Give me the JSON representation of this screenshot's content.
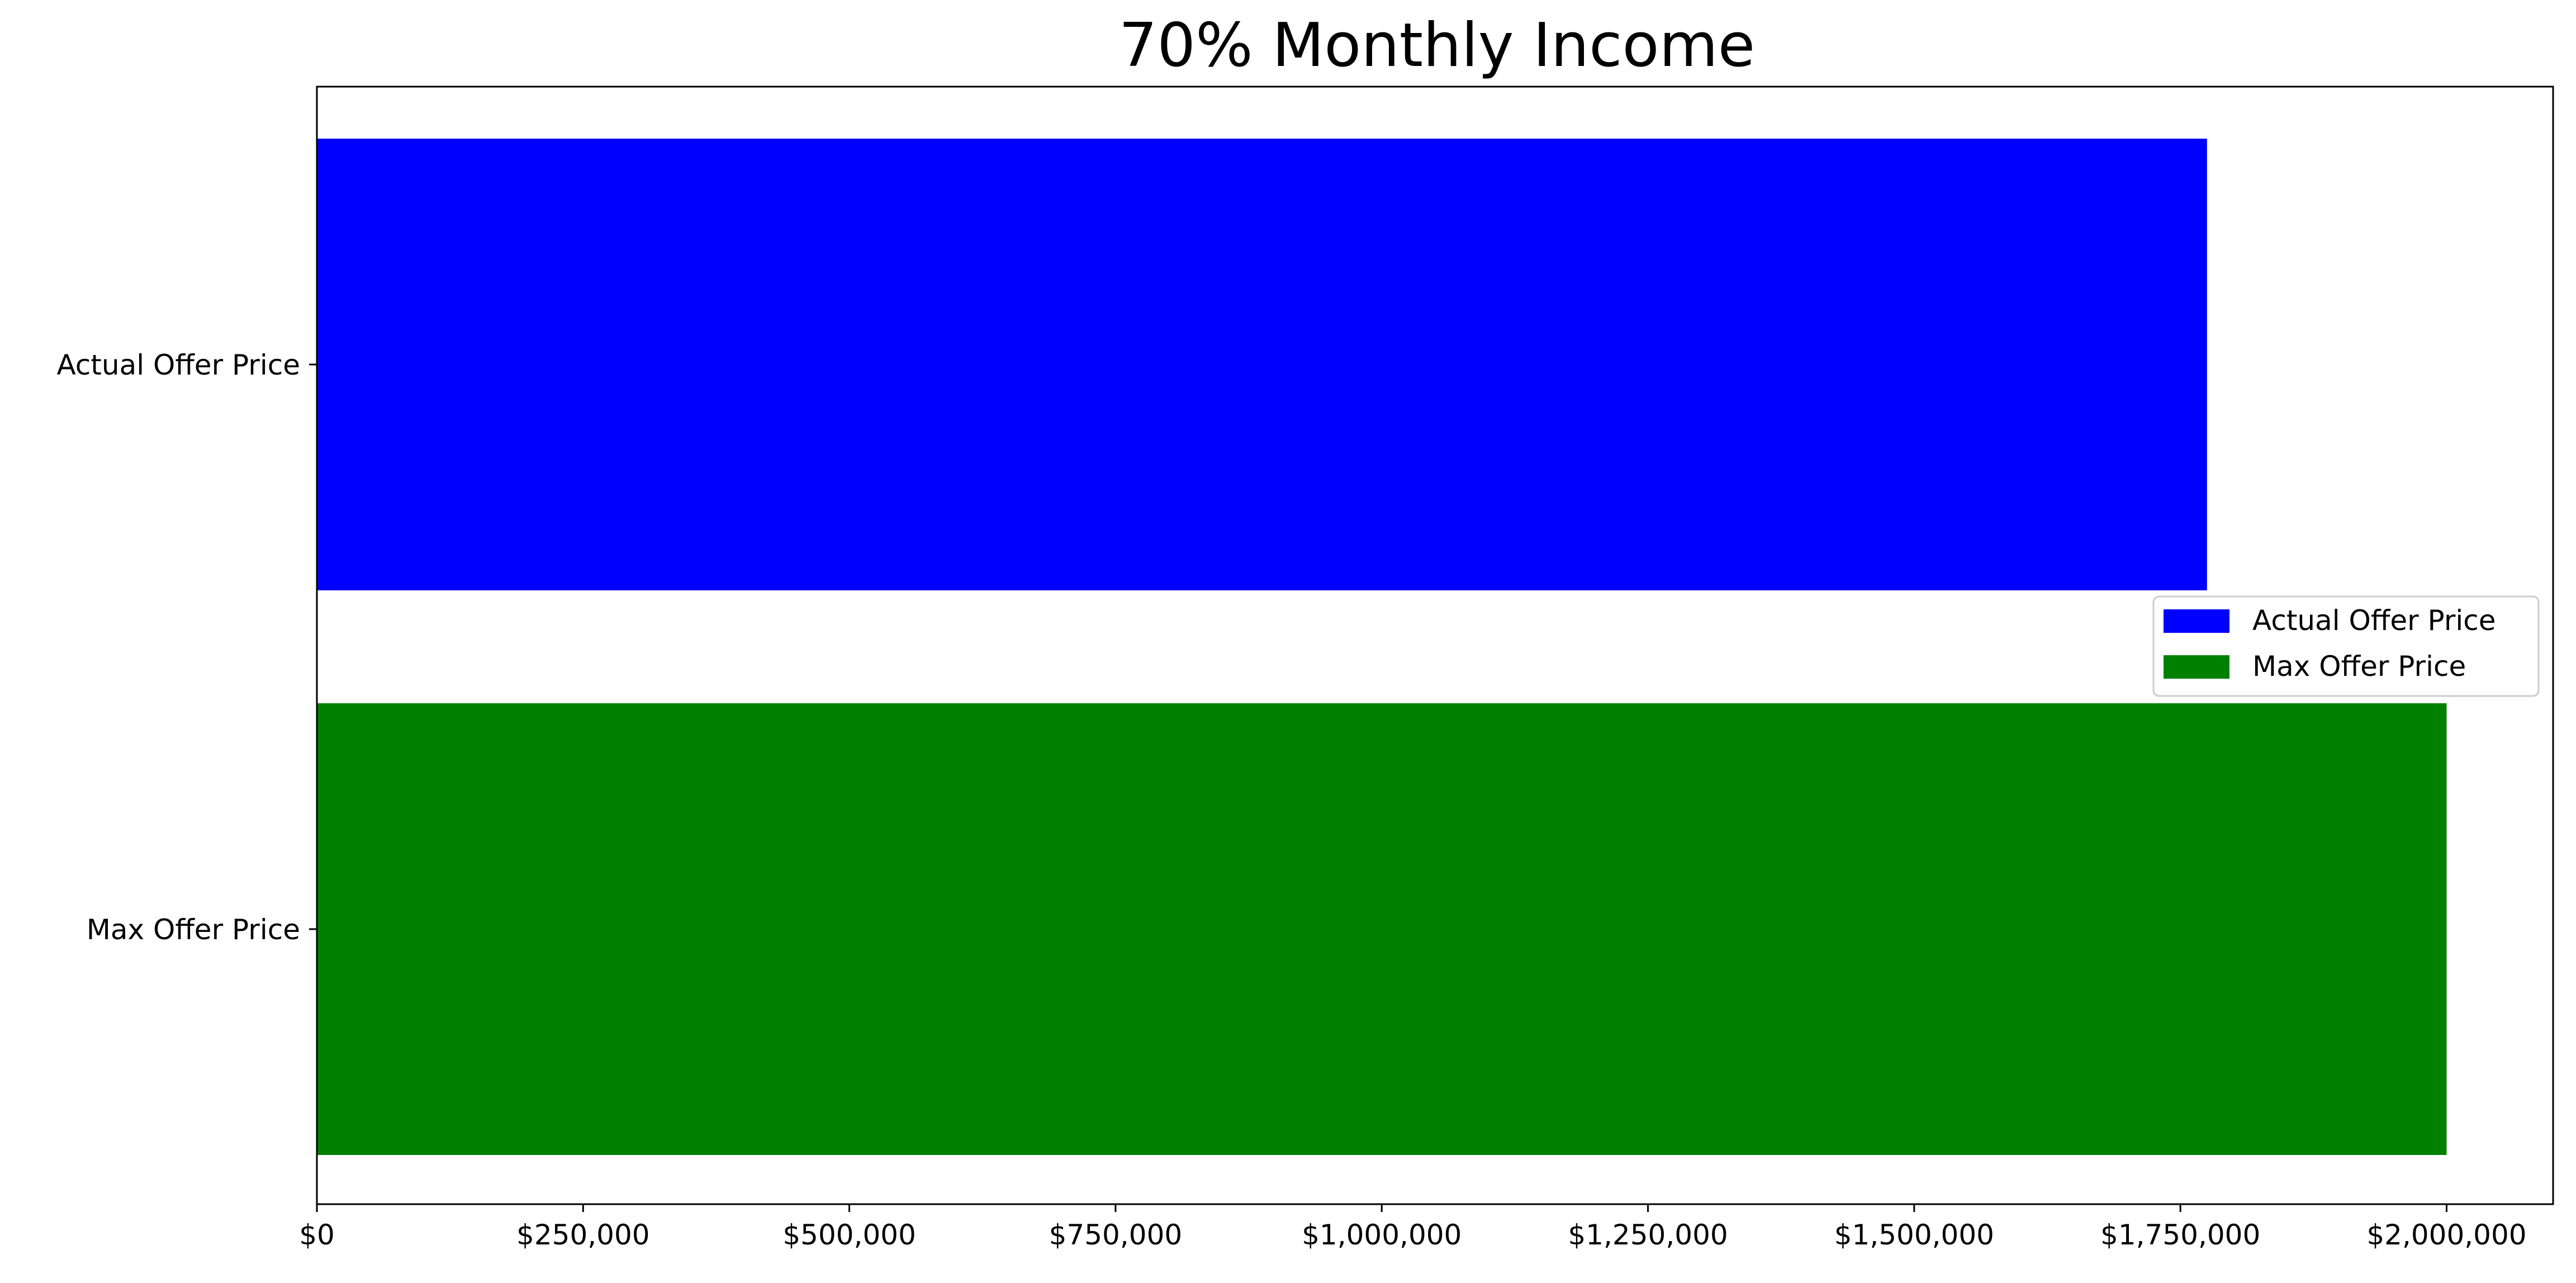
{
  "chart_data": {
    "type": "bar",
    "orientation": "horizontal",
    "title": "70% Monthly Income",
    "xlabel": "",
    "ylabel": "",
    "categories": [
      "Actual Offer Price",
      "Max Offer Price"
    ],
    "values": [
      1775000,
      2000000
    ],
    "colors": [
      "#0000ff",
      "#008000"
    ],
    "xlim": [
      0,
      2100000
    ],
    "x_ticks": [
      0,
      250000,
      500000,
      750000,
      1000000,
      1250000,
      1500000,
      1750000,
      2000000
    ],
    "x_tick_labels": [
      "$0",
      "$250,000",
      "$500,000",
      "$750,000",
      "$1,000,000",
      "$1,250,000",
      "$1,500,000",
      "$1,750,000",
      "$2,000,000"
    ],
    "grid": false,
    "legend": {
      "placement": "center-right",
      "entries": [
        {
          "label": "Actual Offer Price",
          "color": "#0000ff"
        },
        {
          "label": "Max Offer Price",
          "color": "#008000"
        }
      ]
    }
  }
}
